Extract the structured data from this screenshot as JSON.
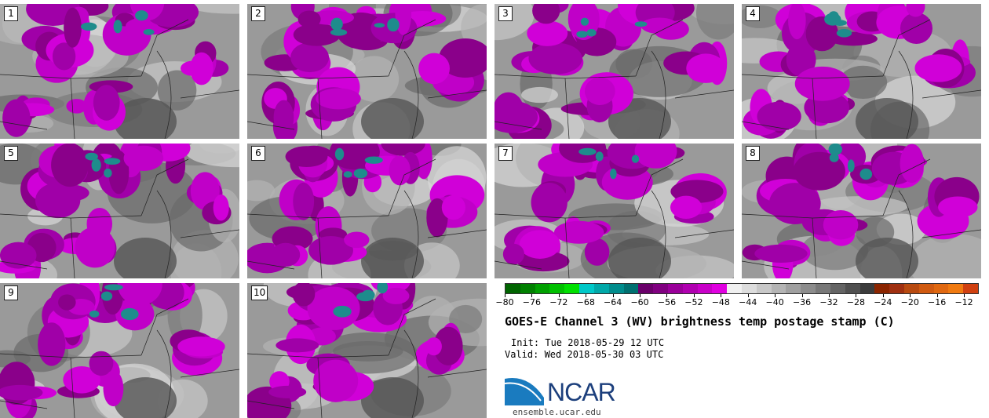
{
  "panels": [
    {
      "label": "1"
    },
    {
      "label": "2"
    },
    {
      "label": "3"
    },
    {
      "label": "4"
    },
    {
      "label": "5"
    },
    {
      "label": "6"
    },
    {
      "label": "7"
    },
    {
      "label": "8"
    },
    {
      "label": "9"
    },
    {
      "label": "10"
    }
  ],
  "colorbar": {
    "colors": [
      "#006400",
      "#008000",
      "#00a000",
      "#00c000",
      "#00e000",
      "#00c8c8",
      "#00a8a8",
      "#008c8c",
      "#007070",
      "#6a006a",
      "#800080",
      "#9a009a",
      "#b000b0",
      "#c800c8",
      "#e000e0",
      "#f0f0f0",
      "#dcdcdc",
      "#c8c8c8",
      "#b4b4b4",
      "#a0a0a0",
      "#8c8c8c",
      "#787878",
      "#646464",
      "#505050",
      "#3c3c3c",
      "#8b2500",
      "#a03010",
      "#b84a10",
      "#d05a10",
      "#e06810",
      "#f07a10",
      "#d04010"
    ],
    "tick_labels": [
      "−80",
      "−76",
      "−72",
      "−68",
      "−64",
      "−60",
      "−56",
      "−52",
      "−48",
      "−44",
      "−40",
      "−36",
      "−32",
      "−28",
      "−24",
      "−20",
      "−16",
      "−12"
    ]
  },
  "title": "GOES-E Channel 3 (WV) brightness temp postage stamp (C)",
  "init": "Init: Tue 2018-05-29 12 UTC",
  "valid": "Valid: Wed 2018-05-30 03 UTC",
  "logo": {
    "text": "NCAR",
    "icon": "ncar-logo-icon"
  },
  "site": "ensemble.ucar.edu"
}
